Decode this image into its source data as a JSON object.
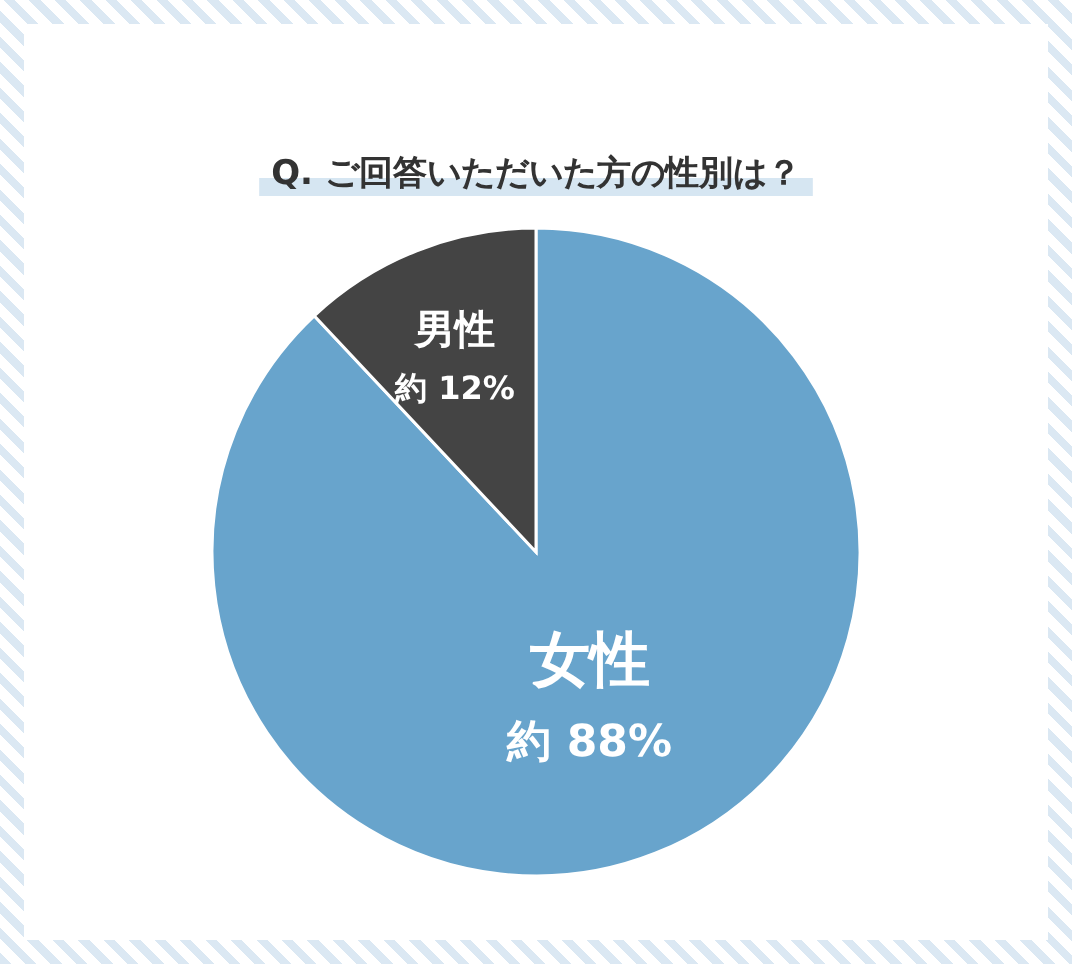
{
  "chart_data": {
    "type": "pie",
    "title": "Q. ご回答いただいた方の性別は？",
    "categories": [
      "女性",
      "男性"
    ],
    "values": [
      88,
      12
    ],
    "colors": [
      "#68a4cc",
      "#444444"
    ],
    "value_labels": [
      "約 88%",
      "約 12%"
    ]
  }
}
